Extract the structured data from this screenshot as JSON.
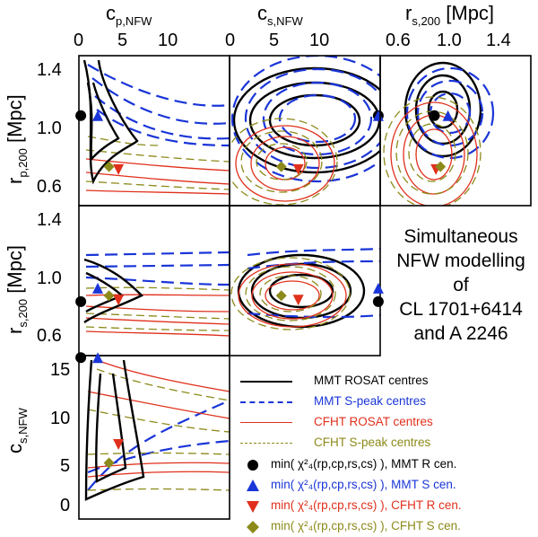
{
  "figure_title": "Simultaneous NFW modelling of CL 1701+6414 and A 2246",
  "side_text": [
    "Simultaneous",
    "NFW modelling",
    "of",
    "CL 1701+6414",
    "and A 2246"
  ],
  "colors": {
    "mmt_rosat": "#000000",
    "mmt_speak": "#1a35d8",
    "cfht_rosat": "#e0301c",
    "cfht_speak": "#8c8a1a"
  },
  "chart_data": {
    "type": "corner-contour",
    "title": "Simultaneous NFW modelling of CL 1701+6414 and A 2246",
    "parameters": [
      {
        "id": "cp",
        "label": "c_p,NFW",
        "range": [
          0,
          16
        ],
        "ticks": [
          0,
          5,
          10
        ]
      },
      {
        "id": "cs",
        "label": "c_s,NFW",
        "range": [
          0,
          16
        ],
        "ticks": [
          0,
          5,
          10
        ]
      },
      {
        "id": "rs",
        "label": "r_s,200 [Mpc]",
        "range": [
          0.5,
          1.5
        ],
        "ticks": [
          0.6,
          1.0,
          1.4
        ]
      },
      {
        "id": "rp",
        "label": "r_p,200 [Mpc]",
        "range": [
          0.5,
          1.5
        ],
        "ticks": [
          0.6,
          1.0,
          1.4
        ]
      }
    ],
    "panels": [
      {
        "row": "rp",
        "col": "cp"
      },
      {
        "row": "rp",
        "col": "cs"
      },
      {
        "row": "rp",
        "col": "rs"
      },
      {
        "row": "rs",
        "col": "cp"
      },
      {
        "row": "rs",
        "col": "cs"
      },
      {
        "row": "cs",
        "col": "cp"
      }
    ],
    "series": [
      {
        "name": "MMT ROSAT centres",
        "style": "solid",
        "color": "#000000"
      },
      {
        "name": "MMT S-peak centres",
        "style": "long-dashed",
        "color": "#1a35d8"
      },
      {
        "name": "CFHT ROSAT centres",
        "style": "solid-thin",
        "color": "#e0301c"
      },
      {
        "name": "CFHT S-peak centres",
        "style": "dashed",
        "color": "#8c8a1a"
      }
    ],
    "minima": [
      {
        "name": "MMT R cen.",
        "marker": "circle",
        "color": "#000000",
        "cp": 0.2,
        "cs": 15.8,
        "rs": 0.86,
        "rp": 1.1
      },
      {
        "name": "MMT S cen.",
        "marker": "triangle-up",
        "color": "#1a35d8",
        "cp": 2.0,
        "cs": 15.8,
        "rs": 0.95,
        "rp": 1.1
      },
      {
        "name": "CFHT R cen.",
        "marker": "triangle-down",
        "color": "#e0301c",
        "cp": 4.2,
        "cs": 7.3,
        "rs": 0.87,
        "rp": 0.74
      },
      {
        "name": "CFHT S cen.",
        "marker": "diamond",
        "color": "#8c8a1a",
        "cp": 3.2,
        "cs": 5.5,
        "rs": 0.9,
        "rp": 0.76
      }
    ]
  },
  "legend": {
    "line_entries": [
      {
        "label": "MMT ROSAT centres",
        "color": "#000000",
        "style": "solid"
      },
      {
        "label": "MMT S-peak centres",
        "color": "#1a35d8",
        "style": "dashed"
      },
      {
        "label": "CFHT ROSAT centres",
        "color": "#e0301c",
        "style": "solid"
      },
      {
        "label": "CFHT S-peak centres",
        "color": "#8c8a1a",
        "style": "dashed"
      }
    ],
    "marker_entries": [
      {
        "prefix": "min(",
        "chi": "χ",
        "sup": "2",
        "sub": "4",
        "args": "(r",
        "args_rest": "), MMT R cen.",
        "text": "min( χ²₄(rp,cp,rs,cs) ), MMT R cen.",
        "suffix": "MMT R cen.",
        "marker": "circle",
        "color": "#000000"
      },
      {
        "prefix": "min(",
        "chi": "χ",
        "sup": "2",
        "sub": "4",
        "args": "(r",
        "args_rest": "), MMT S cen.",
        "text": "min( χ²₄(rp,cp,rs,cs) ), MMT S cen.",
        "suffix": "MMT S cen.",
        "marker": "triangle-up",
        "color": "#1a35d8"
      },
      {
        "prefix": "min(",
        "chi": "χ",
        "sup": "2",
        "sub": "4",
        "args": "(r",
        "args_rest": "), CFHT R cen.",
        "text": "min( χ²₄(rp,cp,rs,cs) ), CFHT R cen.",
        "suffix": "CFHT R cen.",
        "marker": "triangle-down",
        "color": "#e0301c"
      },
      {
        "prefix": "min(",
        "chi": "χ",
        "sup": "2",
        "sub": "4",
        "args": "(r",
        "args_rest": "), CFHT S cen.",
        "text": "min( χ²₄(rp,cp,rs,cs) ), CFHT S cen.",
        "suffix": "CFHT S cen.",
        "marker": "diamond",
        "color": "#8c8a1a"
      }
    ]
  },
  "axis_titles": {
    "cp": {
      "main": "c",
      "sub": "p,NFW"
    },
    "cs": {
      "main": "c",
      "sub": "s,NFW"
    },
    "rs": {
      "main": "r",
      "sub": "s,200",
      "unit": " [Mpc]"
    },
    "rp": {
      "main": "r",
      "sub": "p,200",
      "unit": " [Mpc]"
    },
    "rs_y": {
      "main": "r",
      "sub": "s,200",
      "unit": " [Mpc]"
    },
    "cs_y": {
      "main": "c",
      "sub": "s,NFW"
    }
  },
  "tick_labels": {
    "top_c": [
      "0",
      "5",
      "10"
    ],
    "top_r": [
      "0.6",
      "1.0",
      "1.4"
    ],
    "left_r": [
      "1.4",
      "1.0",
      "0.6"
    ],
    "left_c": [
      "15",
      "10",
      "5",
      "0"
    ]
  }
}
